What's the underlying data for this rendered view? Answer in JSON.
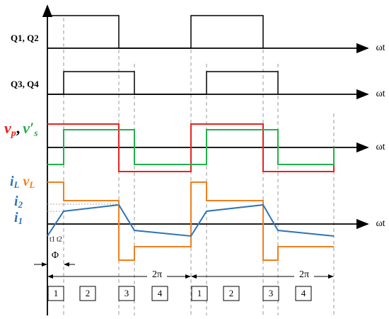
{
  "signals": {
    "q12": "Q1, Q2",
    "q34": "Q3, Q4",
    "vp": "v",
    "vp_sub": "p",
    "sep": ",",
    "vs": "v′",
    "vs_sub": "s",
    "iL": "i",
    "iL_sub": "L",
    "vL": "v",
    "vL_sub": "L",
    "i2": "i",
    "i2_sub": "2",
    "i1": "i",
    "i1_sub": "1"
  },
  "axis_labels": [
    "ωt",
    "ωt",
    "ωt",
    "ωt"
  ],
  "times": {
    "t1": "t1",
    "t2": "t2",
    "phi": "Φ",
    "period_1": "2π",
    "period_2": "2π"
  },
  "intervals": [
    "1",
    "2",
    "3",
    "4",
    "1",
    "2",
    "3",
    "4"
  ]
}
